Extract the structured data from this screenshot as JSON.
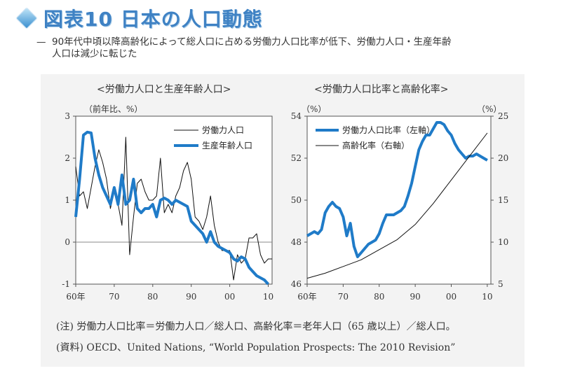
{
  "header": {
    "title": "図表10 日本の人口動態",
    "subtitle_dash": "—",
    "subtitle_line1": "90年代中頃以降高齢化によって総人口に占める労働力人口比率が低下、労働力人口・生産年齢",
    "subtitle_line2": "人口は減少に転じた"
  },
  "colors": {
    "accent_blue": "#1f7bc8",
    "black_line": "#111111",
    "title_blue": "#3f82c4"
  },
  "notes": {
    "note1": "(注) 労働力人口比率＝労働力人口／総人口、高齢化率＝老年人口（65 歳以上）／総人口。",
    "note2": "(資料) OECD、United Nations, “World Population Prospects: The 2010 Revision”"
  },
  "chart_data": [
    {
      "type": "line",
      "title": "<労働力人口と生産年齢人口>",
      "unit_label": "（前年比、%）",
      "x_tick_labels": [
        "60年",
        "70",
        "80",
        "90",
        "00",
        "10"
      ],
      "x_tick_values": [
        1960,
        1970,
        1980,
        1990,
        2000,
        2010
      ],
      "y_tick_labels": [
        "3",
        "2",
        "1",
        "0",
        "-1"
      ],
      "y_tick_values": [
        3,
        2,
        1,
        0,
        -1
      ],
      "xlim": [
        1960,
        2011
      ],
      "ylim": [
        -1,
        3
      ],
      "legend_position": "top-right",
      "series": [
        {
          "name": "労働力人口",
          "color": "#111111",
          "x": [
            1960,
            1961,
            1962,
            1963,
            1964,
            1965,
            1966,
            1967,
            1968,
            1969,
            1970,
            1971,
            1972,
            1973,
            1974,
            1975,
            1976,
            1977,
            1978,
            1979,
            1980,
            1981,
            1982,
            1983,
            1984,
            1985,
            1986,
            1987,
            1988,
            1989,
            1990,
            1991,
            1992,
            1993,
            1994,
            1995,
            1996,
            1997,
            1998,
            1999,
            2000,
            2001,
            2002,
            2003,
            2004,
            2005,
            2006,
            2007,
            2008,
            2009,
            2010,
            2011
          ],
          "values": [
            1.8,
            1.1,
            1.2,
            0.8,
            1.3,
            1.8,
            2.2,
            1.9,
            1.5,
            0.8,
            1.2,
            0.9,
            0.4,
            2.5,
            -0.3,
            0.6,
            1.4,
            1.5,
            1.2,
            1.0,
            1.0,
            1.1,
            2.0,
            0.7,
            0.9,
            0.7,
            1.1,
            1.3,
            1.7,
            1.9,
            1.5,
            0.6,
            0.5,
            0.3,
            0.6,
            1.1,
            0.4,
            0.0,
            -0.2,
            -0.2,
            -0.2,
            -0.9,
            -0.3,
            -0.5,
            -0.4,
            0.1,
            0.1,
            0.2,
            -0.3,
            -0.5,
            -0.4,
            -0.4
          ]
        },
        {
          "name": "生産年齢人口",
          "color": "#1f7bc8",
          "x": [
            1960,
            1961,
            1962,
            1963,
            1964,
            1965,
            1966,
            1967,
            1968,
            1969,
            1970,
            1971,
            1972,
            1973,
            1974,
            1975,
            1976,
            1977,
            1978,
            1979,
            1980,
            1981,
            1982,
            1983,
            1984,
            1985,
            1986,
            1987,
            1988,
            1989,
            1990,
            1991,
            1992,
            1993,
            1994,
            1995,
            1996,
            1997,
            1998,
            1999,
            2000,
            2001,
            2002,
            2003,
            2004,
            2005,
            2006,
            2007,
            2008,
            2009,
            2010
          ],
          "values": [
            0.6,
            1.5,
            2.55,
            2.62,
            2.6,
            2.0,
            1.6,
            1.3,
            1.1,
            0.9,
            1.3,
            0.9,
            1.6,
            0.9,
            1.0,
            1.5,
            0.8,
            0.7,
            0.8,
            0.8,
            0.9,
            0.6,
            1.0,
            1.05,
            1.0,
            0.9,
            1.0,
            0.95,
            0.9,
            0.85,
            0.5,
            0.4,
            0.3,
            0.2,
            0.0,
            0.25,
            0.0,
            -0.1,
            -0.15,
            -0.2,
            -0.25,
            -0.4,
            -0.45,
            -0.35,
            -0.4,
            -0.6,
            -0.7,
            -0.8,
            -0.85,
            -0.9,
            -1.0
          ]
        }
      ]
    },
    {
      "type": "line",
      "title": "<労働力人口比率と高齢化率>",
      "left_unit_label": "（%）",
      "right_unit_label": "（%）",
      "x_tick_labels": [
        "60年",
        "70",
        "80",
        "90",
        "00",
        "10"
      ],
      "x_tick_values": [
        1960,
        1970,
        1980,
        1990,
        2000,
        2010
      ],
      "xlim": [
        1960,
        2011
      ],
      "y_left_tick_labels": [
        "54",
        "52",
        "50",
        "48",
        "46"
      ],
      "y_left_tick_values": [
        54,
        52,
        50,
        48,
        46
      ],
      "y_left_lim": [
        46,
        54
      ],
      "y_right_tick_labels": [
        "25",
        "20",
        "15",
        "10",
        "5"
      ],
      "y_right_tick_values": [
        25,
        20,
        15,
        10,
        5
      ],
      "y_right_lim": [
        5,
        25
      ],
      "legend_position": "top-left",
      "series": [
        {
          "name": "労働力人口比率（左軸）",
          "axis": "left",
          "color": "#1f7bc8",
          "x": [
            1960,
            1961,
            1962,
            1963,
            1964,
            1965,
            1966,
            1967,
            1968,
            1969,
            1970,
            1971,
            1972,
            1973,
            1974,
            1975,
            1976,
            1977,
            1978,
            1979,
            1980,
            1981,
            1982,
            1983,
            1984,
            1985,
            1986,
            1987,
            1988,
            1989,
            1990,
            1991,
            1992,
            1993,
            1994,
            1995,
            1996,
            1997,
            1998,
            1999,
            2000,
            2001,
            2002,
            2003,
            2004,
            2005,
            2006,
            2007,
            2008,
            2009,
            2010
          ],
          "values": [
            48.3,
            48.4,
            48.5,
            48.4,
            48.6,
            49.4,
            49.7,
            49.9,
            49.7,
            49.6,
            49.2,
            48.3,
            48.9,
            47.8,
            47.3,
            47.5,
            47.7,
            47.9,
            48.0,
            48.1,
            48.4,
            48.9,
            49.3,
            49.3,
            49.3,
            49.4,
            49.5,
            49.7,
            50.2,
            50.8,
            51.6,
            52.4,
            52.8,
            53.1,
            53.1,
            53.4,
            53.7,
            53.7,
            53.6,
            53.3,
            53.1,
            52.7,
            52.4,
            52.2,
            52.0,
            52.1,
            52.1,
            52.2,
            52.1,
            52.0,
            51.9
          ]
        },
        {
          "name": "高齢化率（右軸）",
          "axis": "right",
          "color": "#111111",
          "x": [
            1960,
            1965,
            1970,
            1975,
            1980,
            1985,
            1990,
            1995,
            2000,
            2005,
            2010
          ],
          "values": [
            5.7,
            6.3,
            7.1,
            7.9,
            9.1,
            10.3,
            12.1,
            14.6,
            17.4,
            20.2,
            23.0
          ]
        }
      ]
    }
  ]
}
